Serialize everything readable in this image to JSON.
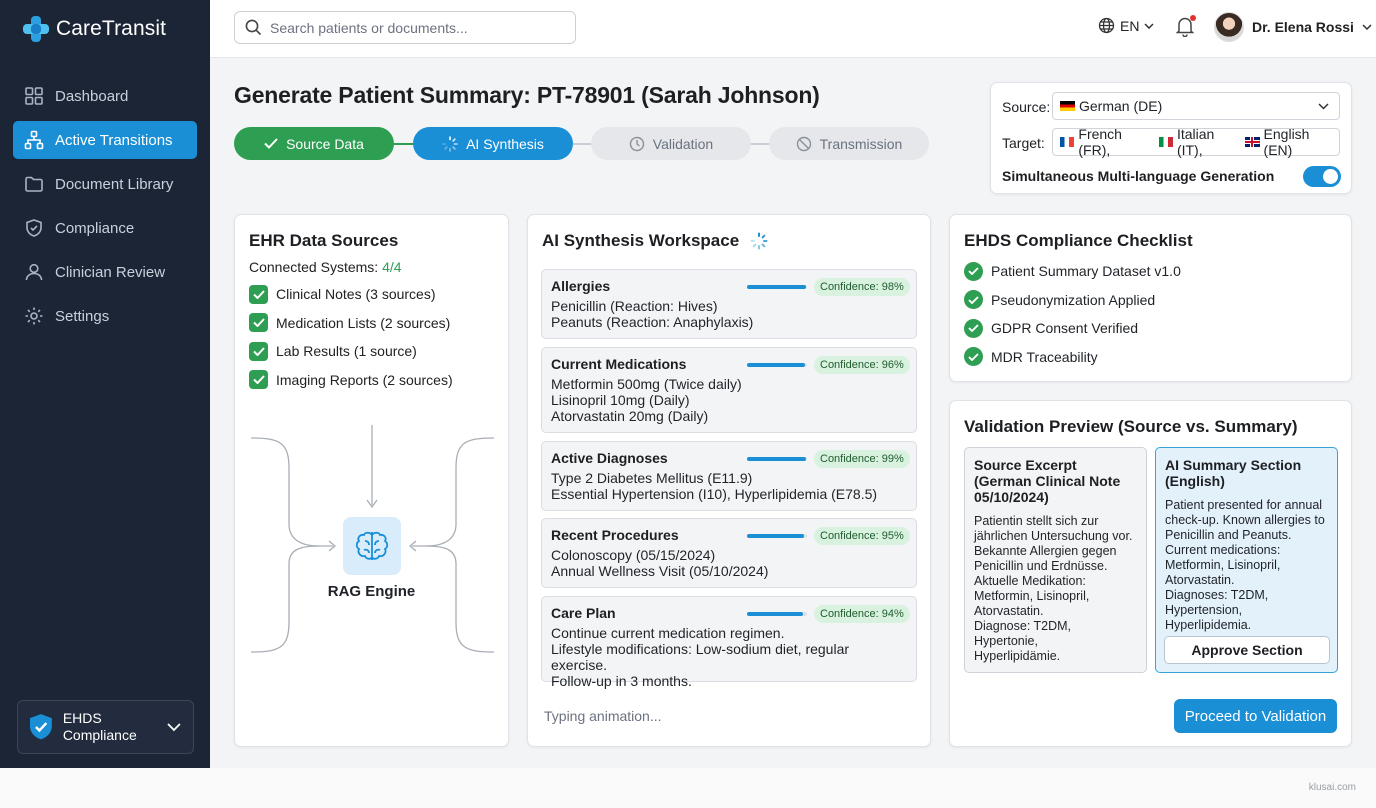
{
  "app": {
    "name": "CareTransit"
  },
  "sidebar": {
    "items": [
      {
        "label": "Dashboard",
        "icon": "dashboard-icon"
      },
      {
        "label": "Active Transitions",
        "icon": "transitions-icon",
        "active": true
      },
      {
        "label": "Document Library",
        "icon": "folder-icon"
      },
      {
        "label": "Compliance",
        "icon": "shield-icon"
      },
      {
        "label": "Clinician Review",
        "icon": "user-icon"
      },
      {
        "label": "Settings",
        "icon": "gear-icon"
      }
    ],
    "badge": {
      "label": "EHDS Compliance",
      "icon": "shield-check-icon"
    }
  },
  "topbar": {
    "search_placeholder": "Search patients or documents...",
    "language": "EN",
    "user_name": "Dr. Elena Rossi"
  },
  "page": {
    "title": "Generate Patient Summary: PT-78901 (Sarah Johnson)",
    "steps": [
      {
        "label": "Source Data",
        "state": "done"
      },
      {
        "label": "AI Synthesis",
        "state": "current"
      },
      {
        "label": "Validation",
        "state": "todo"
      },
      {
        "label": "Transmission",
        "state": "todo"
      }
    ]
  },
  "languages": {
    "source_label": "Source:",
    "source_value": "German (DE)",
    "target_label": "Target:",
    "targets": [
      "French (FR),",
      "Italian (IT),",
      "English (EN)"
    ],
    "toggle_label": "Simultaneous Multi-language Generation",
    "toggle_on": true
  },
  "ehr": {
    "title": "EHR Data Sources",
    "connected_label": "Connected Systems:",
    "connected_value": "4/4",
    "sources": [
      "Clinical Notes (3 sources)",
      "Medication Lists (2 sources)",
      "Lab Results (1 source)",
      "Imaging Reports (2 sources)"
    ],
    "engine_label": "RAG Engine"
  },
  "workspace": {
    "title": "AI Synthesis Workspace",
    "sections": [
      {
        "heading": "Allergies",
        "confidence": "Confidence: 98%",
        "level": 0.98,
        "lines": [
          "Penicillin (Reaction: Hives)",
          "Peanuts (Reaction: Anaphylaxis)"
        ]
      },
      {
        "heading": "Current Medications",
        "confidence": "Confidence: 96%",
        "level": 0.96,
        "lines": [
          "Metformin 500mg (Twice daily)",
          "Lisinopril 10mg (Daily)",
          "Atorvastatin 20mg (Daily)"
        ]
      },
      {
        "heading": "Active Diagnoses",
        "confidence": "Confidence: 99%",
        "level": 0.99,
        "lines": [
          "Type 2 Diabetes Mellitus (E11.9)",
          "Essential Hypertension (I10), Hyperlipidemia (E78.5)"
        ]
      },
      {
        "heading": "Recent Procedures",
        "confidence": "Confidence: 95%",
        "level": 0.95,
        "lines": [
          "Colonoscopy (05/15/2024)",
          "Annual Wellness Visit (05/10/2024)"
        ]
      },
      {
        "heading": "Care Plan",
        "confidence": "Confidence: 94%",
        "level": 0.94,
        "lines": [
          "Continue current medication regimen.",
          "Lifestyle modifications: Low-sodium diet, regular exercise.",
          "Follow-up in 3 months."
        ]
      }
    ],
    "typing_text": "Typing animation..."
  },
  "compliance": {
    "title": "EHDS Compliance Checklist",
    "items": [
      "Patient Summary Dataset v1.0",
      "Pseudonymization Applied",
      "GDPR Consent Verified",
      "MDR Traceability"
    ]
  },
  "validation": {
    "title": "Validation Preview (Source vs. Summary)",
    "source_heading": "Source Excerpt (German Clinical Note 05/10/2024)",
    "source_lines": [
      "Patientin stellt sich zur",
      "jährlichen Untersuchung vor.",
      "Bekannte Allergien gegen",
      "Penicillin und Erdnüsse.",
      "Aktuelle Medikation:",
      "Metformin, Lisinopril,",
      "Atorvastatin.",
      "Diagnose: T2DM, Hypertonie,",
      "Hyperlipidämie."
    ],
    "summary_heading": "AI Summary Section (English)",
    "summary_lines": [
      "Patient presented for annual",
      "check-up. Known allergies to",
      "Penicillin and Peanuts.",
      "Current medications:",
      "Metformin, Lisinopril,",
      "Atorvastatin.",
      "Diagnoses: T2DM,",
      "Hypertension, Hyperlipidemia."
    ],
    "approve_label": "Approve Section",
    "proceed_label": "Proceed to Validation"
  },
  "footer": {
    "watermark": "klusai.com"
  },
  "colors": {
    "primary": "#1a8fd6",
    "success": "#2e9e53",
    "sidebar": "#1c2536"
  }
}
